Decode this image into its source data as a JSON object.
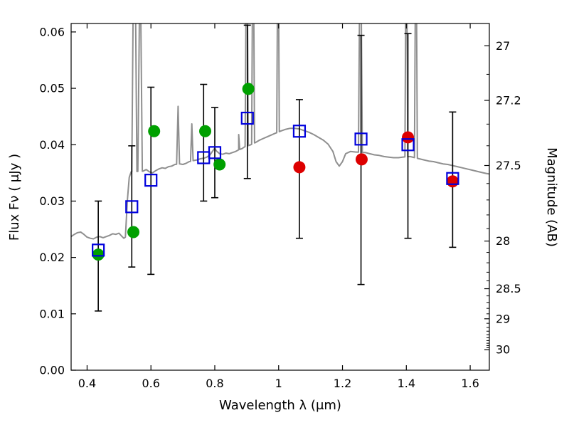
{
  "chart_data": {
    "type": "scatter",
    "title": "",
    "xlabel": "Wavelength  λ (μm)",
    "ylabel": "Flux  Fν  ( μJy )",
    "xlim": [
      0.35,
      1.66
    ],
    "ylim": [
      0.0,
      0.0615
    ],
    "grid": false,
    "xticks": {
      "values": [
        0.4,
        0.6,
        0.8,
        1.0,
        1.2,
        1.4,
        1.6
      ],
      "labels": [
        "0.4",
        "0.6",
        "0.8",
        "1",
        "1.2",
        "1.4",
        "1.6"
      ]
    },
    "yticks": {
      "values": [
        0.0,
        0.01,
        0.02,
        0.03,
        0.04,
        0.05,
        0.06
      ],
      "labels": [
        "0.00",
        "0.01",
        "0.02",
        "0.03",
        "0.04",
        "0.05",
        "0.06"
      ]
    },
    "y2": {
      "label": "Magnitude (AB)",
      "ab_zeropoint_ujy": 23.9,
      "major_ticks": [
        27,
        27.2,
        27.5,
        28,
        28.5,
        29,
        30
      ],
      "major_labels": [
        "27",
        "27.2",
        "27.5",
        "28",
        "28.5",
        "29",
        "30"
      ],
      "minor_tick_step": 0.1,
      "minor_tick_range": [
        27.0,
        30.0
      ]
    },
    "spectrum": {
      "color": "#8f8f8f",
      "linewidth": 2,
      "continuum": [
        [
          0.35,
          0.0237
        ],
        [
          0.36,
          0.0241
        ],
        [
          0.37,
          0.0244
        ],
        [
          0.38,
          0.0245
        ],
        [
          0.39,
          0.0241
        ],
        [
          0.4,
          0.0236
        ],
        [
          0.41,
          0.0234
        ],
        [
          0.42,
          0.0233
        ],
        [
          0.43,
          0.0236
        ],
        [
          0.44,
          0.0237
        ],
        [
          0.45,
          0.0235
        ],
        [
          0.46,
          0.0237
        ],
        [
          0.47,
          0.0239
        ],
        [
          0.48,
          0.0242
        ],
        [
          0.49,
          0.0241
        ],
        [
          0.5,
          0.0243
        ],
        [
          0.508,
          0.0238
        ],
        [
          0.515,
          0.0234
        ],
        [
          0.52,
          0.0236
        ],
        [
          0.526,
          0.03
        ],
        [
          0.532,
          0.0342
        ],
        [
          0.538,
          0.0352
        ],
        [
          0.575,
          0.0353
        ],
        [
          0.585,
          0.0356
        ],
        [
          0.595,
          0.0352
        ],
        [
          0.605,
          0.035
        ],
        [
          0.615,
          0.0354
        ],
        [
          0.625,
          0.0357
        ],
        [
          0.635,
          0.0359
        ],
        [
          0.645,
          0.0358
        ],
        [
          0.655,
          0.0361
        ],
        [
          0.665,
          0.0362
        ],
        [
          0.675,
          0.0365
        ],
        [
          0.69,
          0.0366
        ],
        [
          0.7,
          0.0365
        ],
        [
          0.71,
          0.0367
        ],
        [
          0.72,
          0.037
        ],
        [
          0.735,
          0.0372
        ],
        [
          0.745,
          0.0373
        ],
        [
          0.755,
          0.0375
        ],
        [
          0.765,
          0.0376
        ],
        [
          0.775,
          0.0378
        ],
        [
          0.785,
          0.0382
        ],
        [
          0.795,
          0.039
        ],
        [
          0.8,
          0.0394
        ],
        [
          0.805,
          0.0389
        ],
        [
          0.815,
          0.0384
        ],
        [
          0.825,
          0.0383
        ],
        [
          0.835,
          0.0385
        ],
        [
          0.845,
          0.0384
        ],
        [
          0.855,
          0.0386
        ],
        [
          0.865,
          0.0388
        ],
        [
          0.875,
          0.0391
        ],
        [
          0.885,
          0.0393
        ],
        [
          0.893,
          0.0396
        ],
        [
          0.908,
          0.0399
        ],
        [
          0.913,
          0.04
        ],
        [
          0.928,
          0.0404
        ],
        [
          0.94,
          0.0408
        ],
        [
          0.952,
          0.0411
        ],
        [
          0.964,
          0.0414
        ],
        [
          0.976,
          0.0417
        ],
        [
          0.988,
          0.042
        ],
        [
          1.006,
          0.0424
        ],
        [
          1.02,
          0.0427
        ],
        [
          1.035,
          0.0429
        ],
        [
          1.05,
          0.0429
        ],
        [
          1.065,
          0.0428
        ],
        [
          1.08,
          0.0425
        ],
        [
          1.095,
          0.0422
        ],
        [
          1.11,
          0.0418
        ],
        [
          1.125,
          0.0413
        ],
        [
          1.14,
          0.0408
        ],
        [
          1.155,
          0.0401
        ],
        [
          1.17,
          0.0388
        ],
        [
          1.18,
          0.037
        ],
        [
          1.19,
          0.0362
        ],
        [
          1.2,
          0.037
        ],
        [
          1.21,
          0.0384
        ],
        [
          1.225,
          0.0388
        ],
        [
          1.24,
          0.0387
        ],
        [
          1.272,
          0.0386
        ],
        [
          1.285,
          0.0384
        ],
        [
          1.3,
          0.0382
        ],
        [
          1.315,
          0.0381
        ],
        [
          1.33,
          0.0379
        ],
        [
          1.345,
          0.0378
        ],
        [
          1.36,
          0.0377
        ],
        [
          1.375,
          0.0377
        ],
        [
          1.388,
          0.0378
        ],
        [
          1.412,
          0.0379
        ],
        [
          1.44,
          0.0375
        ],
        [
          1.455,
          0.0373
        ],
        [
          1.47,
          0.0371
        ],
        [
          1.485,
          0.037
        ],
        [
          1.5,
          0.0368
        ],
        [
          1.515,
          0.0366
        ],
        [
          1.53,
          0.0365
        ],
        [
          1.545,
          0.0363
        ],
        [
          1.56,
          0.0361
        ],
        [
          1.575,
          0.0359
        ],
        [
          1.59,
          0.0357
        ],
        [
          1.605,
          0.0355
        ],
        [
          1.62,
          0.0353
        ],
        [
          1.635,
          0.0351
        ],
        [
          1.65,
          0.0349
        ],
        [
          1.66,
          0.0348
        ]
      ],
      "emission_lines": [
        {
          "x": 0.548,
          "peak": 0.09,
          "halfwidth": 0.008
        },
        {
          "x": 0.566,
          "peak": 0.075,
          "halfwidth": 0.007
        },
        {
          "x": 0.685,
          "peak": 0.0468,
          "halfwidth": 0.0045
        },
        {
          "x": 0.728,
          "peak": 0.0437,
          "halfwidth": 0.004
        },
        {
          "x": 0.875,
          "peak": 0.0418,
          "halfwidth": 0.003
        },
        {
          "x": 0.9,
          "peak": 0.085,
          "halfwidth": 0.005
        },
        {
          "x": 0.92,
          "peak": 0.085,
          "halfwidth": 0.0045
        },
        {
          "x": 0.998,
          "peak": 0.085,
          "halfwidth": 0.004
        },
        {
          "x": 1.256,
          "peak": 0.085,
          "halfwidth": 0.006
        },
        {
          "x": 1.4,
          "peak": 0.085,
          "halfwidth": 0.0045
        },
        {
          "x": 1.43,
          "peak": 0.085,
          "halfwidth": 0.0045
        }
      ]
    },
    "series": [
      {
        "name": "green-circles",
        "marker": "circle",
        "color": "#00a000",
        "points": [
          {
            "x": 0.435,
            "y": 0.0205
          },
          {
            "x": 0.545,
            "y": 0.0245
          },
          {
            "x": 0.61,
            "y": 0.0424
          },
          {
            "x": 0.77,
            "y": 0.0424
          },
          {
            "x": 0.815,
            "y": 0.0365
          },
          {
            "x": 0.905,
            "y": 0.0499
          }
        ]
      },
      {
        "name": "red-circles",
        "marker": "circle",
        "color": "#dd0000",
        "points": [
          {
            "x": 1.065,
            "y": 0.036
          },
          {
            "x": 1.26,
            "y": 0.0374
          },
          {
            "x": 1.405,
            "y": 0.0413
          },
          {
            "x": 1.545,
            "y": 0.0335
          }
        ]
      },
      {
        "name": "blue-squares",
        "marker": "square",
        "color": "#0000dd",
        "points": [
          {
            "x": 0.435,
            "y": 0.0213,
            "ylo": 0.0105,
            "yhi": 0.03
          },
          {
            "x": 0.54,
            "y": 0.029,
            "ylo": 0.0183,
            "yhi": 0.0398
          },
          {
            "x": 0.6,
            "y": 0.0337,
            "ylo": 0.017,
            "yhi": 0.0502
          },
          {
            "x": 0.765,
            "y": 0.0377,
            "ylo": 0.03,
            "yhi": 0.0507
          },
          {
            "x": 0.8,
            "y": 0.0386,
            "ylo": 0.0306,
            "yhi": 0.0466
          },
          {
            "x": 0.902,
            "y": 0.0447,
            "ylo": 0.034,
            "yhi": 0.0612
          },
          {
            "x": 1.065,
            "y": 0.0424,
            "ylo": 0.0234,
            "yhi": 0.048
          },
          {
            "x": 1.258,
            "y": 0.041,
            "ylo": 0.0152,
            "yhi": 0.0594
          },
          {
            "x": 1.405,
            "y": 0.04,
            "ylo": 0.0234,
            "yhi": 0.0597
          },
          {
            "x": 1.545,
            "y": 0.034,
            "ylo": 0.0218,
            "yhi": 0.0458
          }
        ]
      }
    ]
  }
}
